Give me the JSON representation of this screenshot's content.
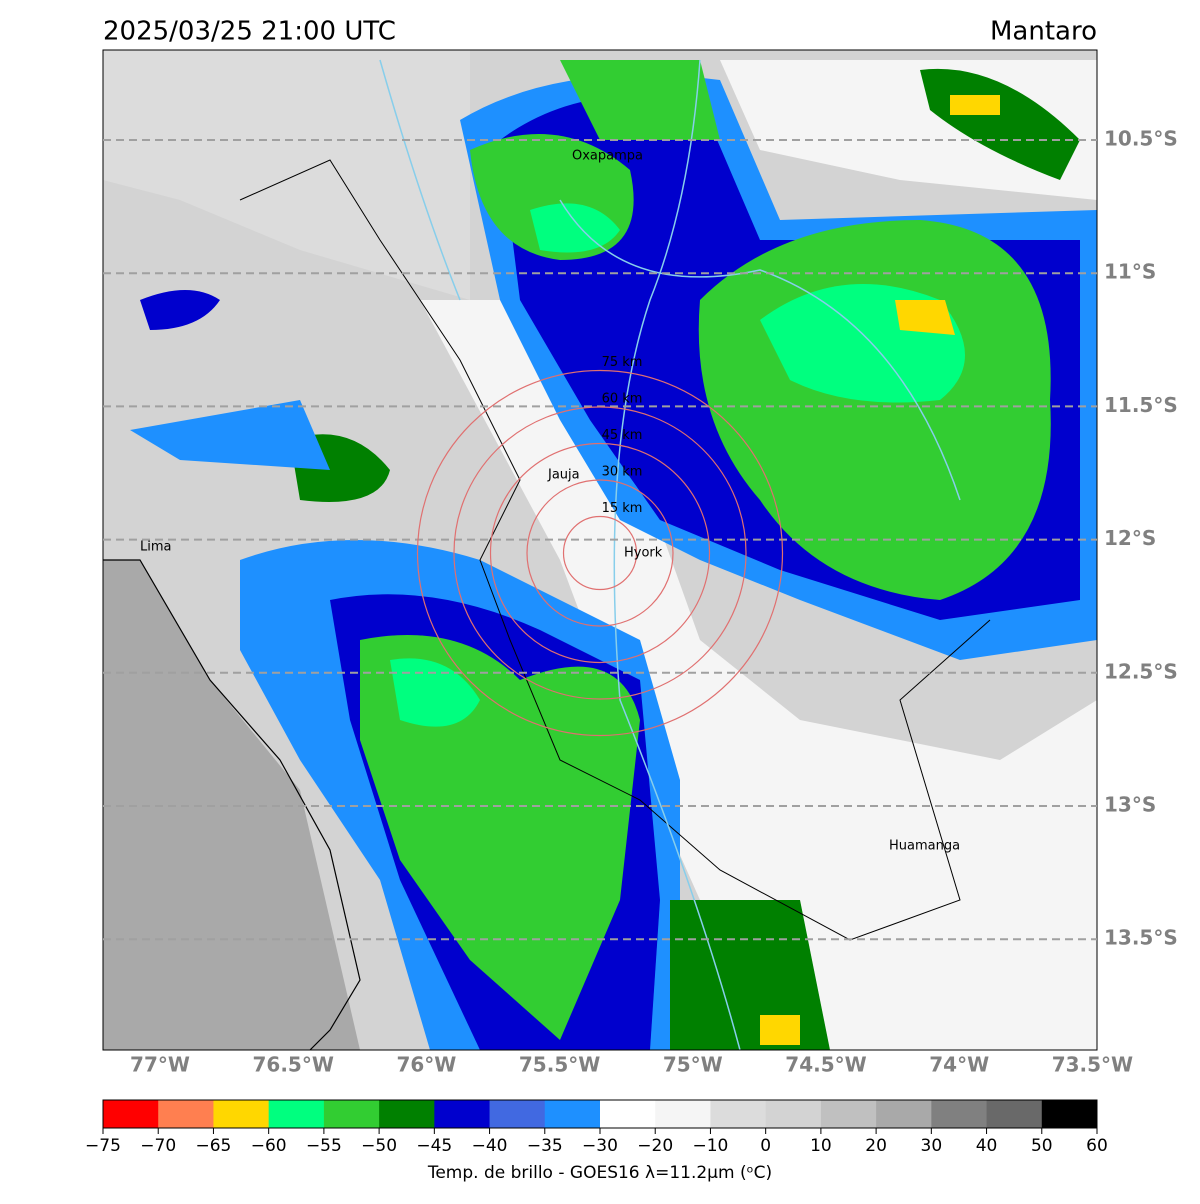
{
  "header": {
    "title": "2025/03/25 21:00 UTC",
    "region": "Mantaro"
  },
  "map": {
    "lat_labels": [
      "10.5°S",
      "11°S",
      "11.5°S",
      "12°S",
      "12.5°S",
      "13°S",
      "13.5°S"
    ],
    "lon_labels": [
      "77°W",
      "76.5°W",
      "76°W",
      "75.5°W",
      "75°W",
      "74.5°W",
      "74°W",
      "73.5°W"
    ],
    "places": [
      "Oxapampa",
      "Jauja",
      "Lima",
      "Hyork",
      "Huamanga"
    ],
    "rings": [
      "15 km",
      "30 km",
      "45 km",
      "60 km",
      "75 km"
    ]
  },
  "colorbar": {
    "colors": [
      "#ff0000",
      "#ff7f50",
      "#ffd700",
      "#00ff7f",
      "#32cd32",
      "#008000",
      "#0000cd",
      "#4169e1",
      "#1e90ff",
      "#ffffff",
      "#f5f5f5",
      "#dcdcdc",
      "#d3d3d3",
      "#c0c0c0",
      "#a9a9a9",
      "#808080",
      "#696969",
      "#000000"
    ],
    "ticks": [
      "−75",
      "−70",
      "−65",
      "−60",
      "−55",
      "−50",
      "−45",
      "−40",
      "−35",
      "−30",
      "−20",
      "−10",
      "0",
      "10",
      "20",
      "30",
      "40",
      "50",
      "60"
    ],
    "label": "Temp. de brillo - GOES16 λ=11.2μm (ᵒC)"
  }
}
